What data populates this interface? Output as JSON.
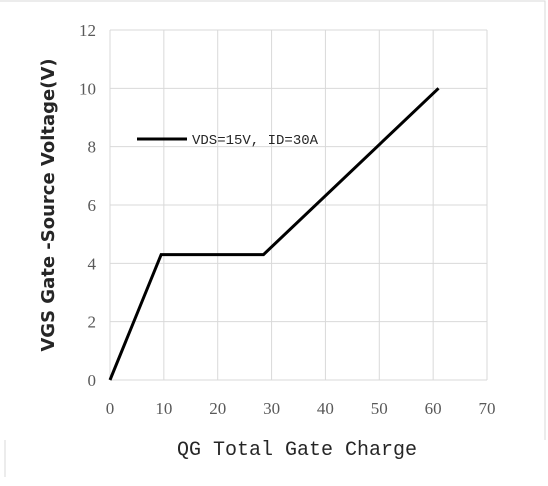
{
  "chart_data": {
    "type": "line",
    "title": "",
    "xlabel": "QG Total Gate Charge",
    "ylabel": "VGS Gate -Source Voltage(V)",
    "xlim": [
      0,
      70
    ],
    "ylim": [
      0,
      12
    ],
    "xticks": [
      0,
      10,
      20,
      30,
      40,
      50,
      60,
      70
    ],
    "yticks": [
      0,
      2,
      4,
      6,
      8,
      10,
      12
    ],
    "grid": true,
    "legend_position": "top-left",
    "series": [
      {
        "name": "VDS=15V, ID=30A",
        "color": "#000000",
        "x": [
          0,
          9.5,
          28.5,
          61
        ],
        "y": [
          0,
          4.3,
          4.3,
          10
        ]
      }
    ]
  }
}
